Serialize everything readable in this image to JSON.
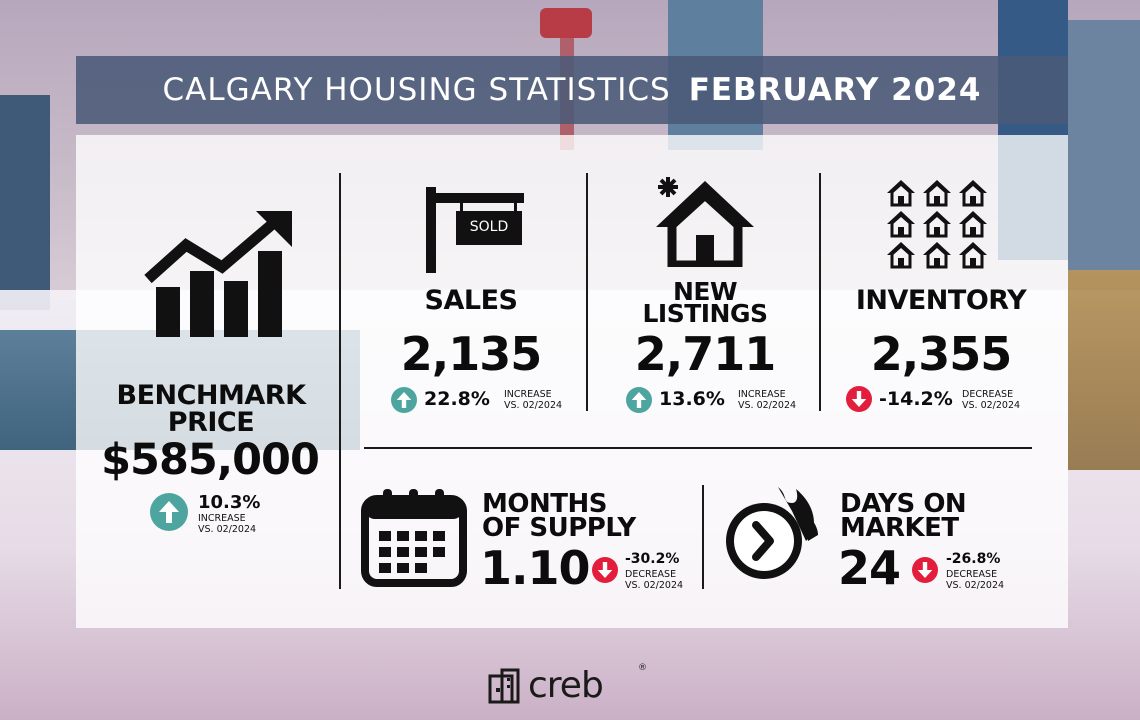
{
  "header": {
    "title_light": "CALGARY HOUSING STATISTICS",
    "title_bold": "FEBRUARY 2024"
  },
  "benchmark": {
    "title_line1": "BENCHMARK",
    "title_line2": "PRICE",
    "value": "$585,000",
    "change": "10.3%",
    "direction": "up",
    "note_line1": "INCREASE",
    "note_line2": "VS. 02/2024"
  },
  "sales": {
    "sign_text": "SOLD",
    "title": "SALES",
    "value": "2,135",
    "change": "22.8%",
    "direction": "up",
    "note_line1": "INCREASE",
    "note_line2": "VS. 02/2024"
  },
  "new_listings": {
    "title_line1": "NEW",
    "title_line2": "LISTINGS",
    "value": "2,711",
    "change": "13.6%",
    "direction": "up",
    "note_line1": "INCREASE",
    "note_line2": "VS. 02/2024"
  },
  "inventory": {
    "title": "INVENTORY",
    "value": "2,355",
    "change": "-14.2%",
    "direction": "down",
    "note_line1": "DECREASE",
    "note_line2": "VS. 02/2024"
  },
  "months_of_supply": {
    "title_line1": "MONTHS",
    "title_line2": "OF SUPPLY",
    "value": "1.10",
    "change": "-30.2%",
    "direction": "down",
    "note_line1": "DECREASE",
    "note_line2": "VS. 02/2024"
  },
  "days_on_market": {
    "title_line1": "DAYS ON",
    "title_line2": "MARKET",
    "value": "24",
    "change": "-26.8%",
    "direction": "down",
    "note_line1": "DECREASE",
    "note_line2": "VS. 02/2024"
  },
  "logo": {
    "text": "creb",
    "mark": "®"
  },
  "colors": {
    "header_bg": "#4a5a78",
    "up": "#4ea59f",
    "down": "#e31e3d"
  },
  "icons": [
    "trend-up-chart-icon",
    "sold-sign-icon",
    "house-icon",
    "houses-grid-icon",
    "calendar-icon",
    "stopwatch-icon",
    "arrow-up-icon",
    "arrow-down-icon",
    "creb-logo-icon"
  ]
}
